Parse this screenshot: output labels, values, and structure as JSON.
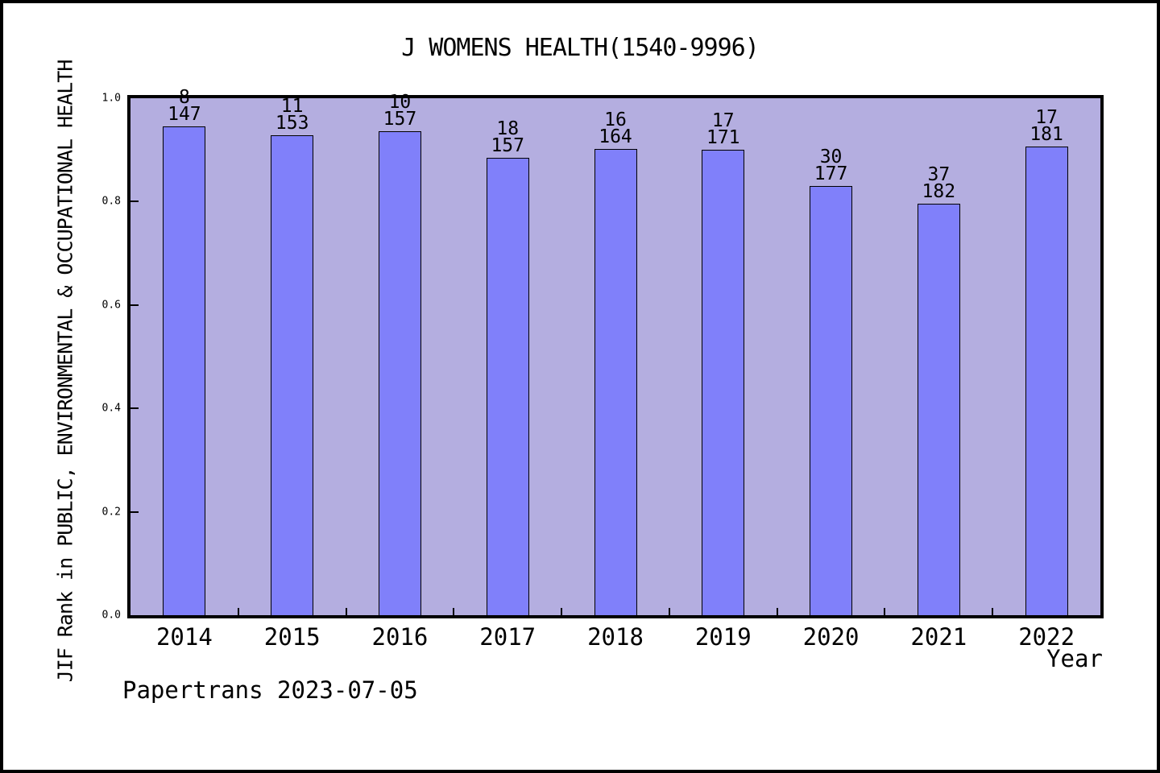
{
  "title": "J WOMENS HEALTH(1540-9996)",
  "footer": "Papertrans 2023-07-05",
  "colors": {
    "bar_fill": "#8080fa",
    "bar_edge": "#000000",
    "plot_background": "#b4aee0",
    "frame_border": "#000000",
    "text": "#000000"
  },
  "chart_data": {
    "type": "bar",
    "title": "J WOMENS HEALTH(1540-9996)",
    "xlabel": "Year",
    "ylabel": "JIF Rank in PUBLIC, ENVIRONMENTAL & OCCUPATIONAL HEALTH",
    "categories": [
      "2014",
      "2015",
      "2016",
      "2017",
      "2018",
      "2019",
      "2020",
      "2021",
      "2022"
    ],
    "values": [
      0.9456,
      0.9281,
      0.9363,
      0.8854,
      0.9024,
      0.9006,
      0.8305,
      0.7967,
      0.9061
    ],
    "bar_labels": [
      {
        "rank": "8",
        "total": "147"
      },
      {
        "rank": "11",
        "total": "153"
      },
      {
        "rank": "10",
        "total": "157"
      },
      {
        "rank": "18",
        "total": "157"
      },
      {
        "rank": "16",
        "total": "164"
      },
      {
        "rank": "17",
        "total": "171"
      },
      {
        "rank": "30",
        "total": "177"
      },
      {
        "rank": "37",
        "total": "182"
      },
      {
        "rank": "17",
        "total": "181"
      }
    ],
    "ylim": [
      0.0,
      1.0
    ],
    "y_ticks": [
      "0.0",
      "0.2",
      "0.4",
      "0.6",
      "0.8",
      "1.0"
    ],
    "grid": false,
    "legend": "none"
  }
}
